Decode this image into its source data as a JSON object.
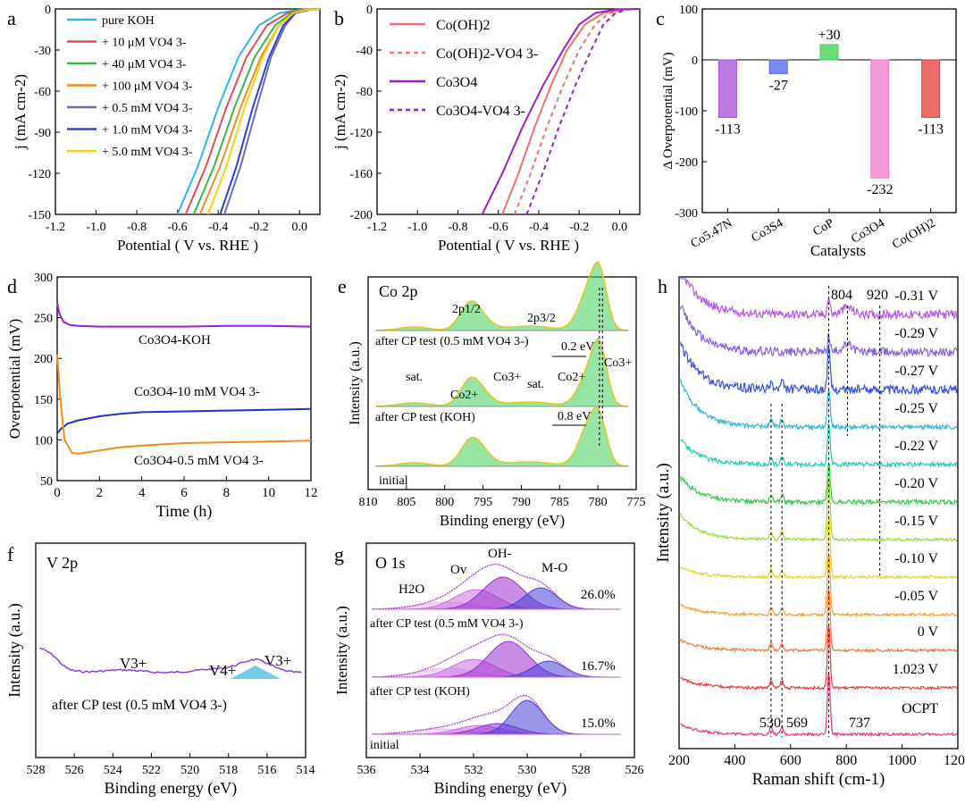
{
  "figure": {
    "panels": [
      "a",
      "b",
      "c",
      "d",
      "e",
      "f",
      "g",
      "h"
    ]
  },
  "chart_data": [
    {
      "id": "a",
      "type": "line",
      "panel_label": "a",
      "xlabel": "Potential ( V vs. RHE )",
      "ylabel": "j (mA cm-2)",
      "xlim": [
        -1.2,
        0.1
      ],
      "ylim": [
        -150,
        0
      ],
      "xticks": [
        "-1.2",
        "-1.0",
        "-0.8",
        "-0.6",
        "-0.4",
        "-0.2",
        "0.0"
      ],
      "yticks": [
        "0",
        "-30",
        "-60",
        "-90",
        "-120",
        "-150"
      ],
      "legend_position": "top-left",
      "series": [
        {
          "name": "pure KOH",
          "color": "#33b5e5",
          "x": [
            -0.6,
            -0.5,
            -0.4,
            -0.3,
            -0.2,
            -0.1,
            0.0,
            0.1
          ],
          "y": [
            -150,
            -115,
            -72,
            -35,
            -12,
            -3,
            -0.5,
            0
          ]
        },
        {
          "name": "+ 10 μM VO4 3-",
          "color": "#e8475a",
          "x": [
            -0.56,
            -0.46,
            -0.36,
            -0.26,
            -0.16,
            -0.06,
            0.02,
            0.1
          ],
          "y": [
            -150,
            -115,
            -72,
            -35,
            -12,
            -3,
            -0.5,
            0
          ]
        },
        {
          "name": "+ 40 μM VO4 3-",
          "color": "#3cb44b",
          "x": [
            -0.52,
            -0.42,
            -0.32,
            -0.22,
            -0.12,
            -0.04,
            0.03,
            0.1
          ],
          "y": [
            -150,
            -115,
            -72,
            -35,
            -12,
            -3,
            -0.5,
            0
          ]
        },
        {
          "name": "+ 100 μM VO4 3-",
          "color": "#f58a1f",
          "x": [
            -0.49,
            -0.39,
            -0.29,
            -0.19,
            -0.1,
            -0.03,
            0.04,
            0.1
          ],
          "y": [
            -150,
            -115,
            -72,
            -35,
            -12,
            -3,
            -0.5,
            0
          ]
        },
        {
          "name": "+ 0.5 mM VO4 3-",
          "color": "#6a6fb5",
          "x": [
            -0.37,
            -0.29,
            -0.21,
            -0.14,
            -0.07,
            -0.02,
            0.05,
            0.1
          ],
          "y": [
            -150,
            -115,
            -72,
            -35,
            -12,
            -3,
            -0.5,
            0
          ]
        },
        {
          "name": "+ 1.0 mM VO4 3-",
          "color": "#2a3fd6",
          "x": [
            -0.39,
            -0.31,
            -0.23,
            -0.15,
            -0.08,
            -0.02,
            0.05,
            0.1
          ],
          "y": [
            -150,
            -115,
            -72,
            -35,
            -12,
            -3,
            -0.5,
            0
          ]
        },
        {
          "name": "+ 5.0 mM VO4 3-",
          "color": "#f5d20a",
          "x": [
            -0.45,
            -0.36,
            -0.27,
            -0.18,
            -0.1,
            -0.03,
            0.04,
            0.1
          ],
          "y": [
            -150,
            -115,
            -72,
            -35,
            -12,
            -3,
            -0.5,
            0
          ]
        }
      ]
    },
    {
      "id": "b",
      "type": "line",
      "panel_label": "b",
      "xlabel": "Potential ( V vs. RHE )",
      "ylabel": "j (mA cm-2)",
      "xlim": [
        -1.2,
        0.1
      ],
      "ylim": [
        -200,
        0
      ],
      "xticks": [
        "-1.2",
        "-1.0",
        "-0.8",
        "-0.6",
        "-0.4",
        "-0.2",
        "0.0"
      ],
      "yticks": [
        "0",
        "-40",
        "-80",
        "-120",
        "-160",
        "-200"
      ],
      "legend_position": "top-left",
      "series": [
        {
          "name": "Co(OH)2",
          "color": "#f07070",
          "dashed": false,
          "x": [
            -0.58,
            -0.5,
            -0.42,
            -0.34,
            -0.26,
            -0.17,
            -0.08,
            0.02,
            0.1
          ],
          "y": [
            -200,
            -160,
            -115,
            -75,
            -40,
            -15,
            -4,
            -0.5,
            0
          ]
        },
        {
          "name": "Co(OH)2-VO4 3-",
          "color": "#f07070",
          "dashed": true,
          "x": [
            -0.52,
            -0.44,
            -0.36,
            -0.28,
            -0.2,
            -0.12,
            -0.05,
            0.03,
            0.1
          ],
          "y": [
            -200,
            -160,
            -115,
            -75,
            -40,
            -15,
            -4,
            -0.5,
            0
          ]
        },
        {
          "name": "Co3O4",
          "color": "#9b1fc4",
          "dashed": false,
          "x": [
            -0.68,
            -0.58,
            -0.48,
            -0.38,
            -0.28,
            -0.2,
            -0.12,
            -0.02,
            0.1
          ],
          "y": [
            -200,
            -160,
            -115,
            -75,
            -40,
            -15,
            -4,
            -0.5,
            0
          ]
        },
        {
          "name": "Co3O4-VO4 3-",
          "color": "#9b1fc4",
          "dashed": true,
          "x": [
            -0.46,
            -0.38,
            -0.3,
            -0.22,
            -0.14,
            -0.08,
            -0.02,
            0.04,
            0.1
          ],
          "y": [
            -200,
            -160,
            -115,
            -75,
            -40,
            -15,
            -4,
            -0.5,
            0
          ]
        }
      ]
    },
    {
      "id": "c",
      "type": "bar",
      "panel_label": "c",
      "xlabel": "Catalysts",
      "ylabel": "Δ Overpotential (mV)",
      "ylim": [
        -300,
        100
      ],
      "yticks": [
        "100",
        "0",
        "-100",
        "-200",
        "-300"
      ],
      "categories": [
        "Co5.47N",
        "Co3S4",
        "CoP",
        "Co3O4",
        "Co(OH)2"
      ],
      "values": [
        -113,
        -27,
        30,
        -232,
        -113
      ],
      "value_labels": [
        "-113",
        "-27",
        "+30",
        "-232",
        "-113"
      ],
      "colors": [
        "#a24fd6",
        "#4a64e8",
        "#3ccf4a",
        "#f07ac8",
        "#e83a3a"
      ]
    },
    {
      "id": "d",
      "type": "line",
      "panel_label": "d",
      "xlabel": "Time (h)",
      "ylabel": "Overpotential (mV)",
      "xlim": [
        0,
        12
      ],
      "ylim": [
        50,
        300
      ],
      "xticks": [
        "0",
        "2",
        "4",
        "6",
        "8",
        "10",
        "12"
      ],
      "yticks": [
        "300",
        "250",
        "200",
        "150",
        "100",
        "50"
      ],
      "series": [
        {
          "name": "Co3O4-KOH",
          "color": "#a01fc8",
          "x": [
            0,
            0.1,
            0.3,
            0.6,
            1,
            2,
            4,
            6,
            8,
            10,
            12
          ],
          "y": [
            268,
            255,
            245,
            241,
            240,
            239,
            239,
            239,
            240,
            240,
            239
          ]
        },
        {
          "name": "Co3O4-10 mM VO4 3-",
          "color": "#1f2fd0",
          "x": [
            0,
            0.2,
            0.5,
            1,
            2,
            3,
            4,
            6,
            8,
            10,
            12
          ],
          "y": [
            108,
            114,
            120,
            124,
            129,
            132,
            134,
            135,
            136,
            137,
            138
          ]
        },
        {
          "name": "Co3O4-0.5 mM VO4 3-",
          "color": "#f58a1f",
          "x": [
            0,
            0.15,
            0.35,
            0.7,
            1,
            2,
            3,
            4,
            6,
            8,
            10,
            12
          ],
          "y": [
            205,
            150,
            100,
            84,
            83,
            87,
            91,
            93,
            96,
            97,
            98,
            99
          ]
        }
      ]
    },
    {
      "id": "e",
      "type": "line",
      "panel_label": "e",
      "inner_title": "Co 2p",
      "xlabel": "Binding energy (eV)",
      "ylabel": "Intensity (a.u.)",
      "xlim": [
        810,
        775
      ],
      "xticks": [
        "810",
        "805",
        "800",
        "795",
        "790",
        "785",
        "780",
        "775"
      ],
      "annotations": [
        "2p1/2",
        "2p3/2",
        "sat.",
        "Co2+",
        "Co3+",
        "sat.",
        "Co2+",
        "Co3+",
        "0.2 eV",
        "0.8 eV"
      ],
      "trace_labels": [
        "after CP test (0.5 mM VO4 3-)",
        "after CP test (KOH)",
        "initial"
      ]
    },
    {
      "id": "f",
      "type": "line",
      "panel_label": "f",
      "inner_title": "V 2p",
      "xlabel": "Binding energy (eV)",
      "ylabel": "Intensity (a.u.)",
      "xlim": [
        528,
        514
      ],
      "xticks": [
        "528",
        "526",
        "524",
        "522",
        "520",
        "518",
        "516",
        "514"
      ],
      "annotations": [
        "V3+",
        "V4+",
        "V3+"
      ],
      "trace_labels": [
        "after CP test (0.5 mM VO4 3-)"
      ]
    },
    {
      "id": "g",
      "type": "line",
      "panel_label": "g",
      "inner_title": "O 1s",
      "xlabel": "Binding energy (eV)",
      "ylabel": "Intensity (a.u.)",
      "xlim": [
        536,
        526
      ],
      "xticks": [
        "536",
        "534",
        "532",
        "530",
        "528",
        "526"
      ],
      "annotations": [
        "H2O",
        "Ov",
        "OH-",
        "M-O"
      ],
      "percentages": [
        "26.0%",
        "16.7%",
        "15.0%"
      ],
      "trace_labels": [
        "after CP test (0.5 mM VO4 3-)",
        "after CP test (KOH)",
        "initial"
      ]
    },
    {
      "id": "h",
      "type": "line",
      "panel_label": "h",
      "xlabel": "Raman shift (cm-1)",
      "ylabel": "Intensity (a.u.)",
      "xlim": [
        200,
        1200
      ],
      "xticks": [
        "200",
        "400",
        "600",
        "800",
        "1000",
        "1200"
      ],
      "peak_labels": [
        "530",
        "569",
        "737",
        "804",
        "920"
      ],
      "traces": [
        {
          "name": "-0.31 V",
          "color": "#b15ae0"
        },
        {
          "name": "-0.29 V",
          "color": "#8a63d8"
        },
        {
          "name": "-0.27 V",
          "color": "#3a52dc"
        },
        {
          "name": "-0.25 V",
          "color": "#33b6d9"
        },
        {
          "name": "-0.22 V",
          "color": "#1dcfae"
        },
        {
          "name": "-0.20 V",
          "color": "#33c94a"
        },
        {
          "name": "-0.15 V",
          "color": "#9ad63a"
        },
        {
          "name": "-0.10 V",
          "color": "#e5d21f"
        },
        {
          "name": "-0.05 V",
          "color": "#f2a033"
        },
        {
          "name": "0 V",
          "color": "#f07a3a"
        },
        {
          "name": "1.023 V",
          "color": "#ee3a3a"
        },
        {
          "name": "OCPT",
          "color": "#e8377a"
        }
      ]
    }
  ]
}
